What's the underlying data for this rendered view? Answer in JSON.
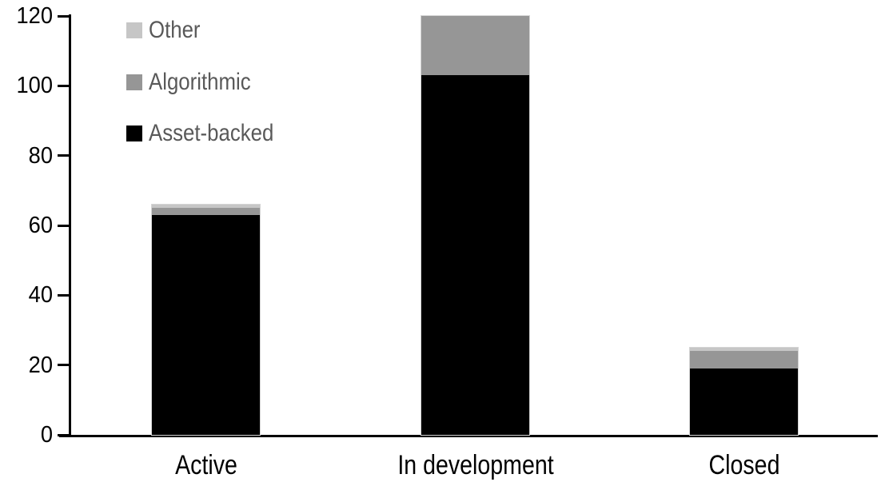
{
  "chart_data": {
    "type": "bar",
    "stacked": true,
    "title": "",
    "xlabel": "",
    "ylabel": "",
    "categories": [
      "Active",
      "In development",
      "Closed"
    ],
    "series": [
      {
        "name": "Asset-backed",
        "color": "#000000",
        "values": [
          63,
          103,
          19
        ]
      },
      {
        "name": "Algorithmic",
        "color": "#969696",
        "values": [
          2,
          17,
          5
        ]
      },
      {
        "name": "Other",
        "color": "#c6c6c6",
        "values": [
          1,
          0,
          1
        ]
      }
    ],
    "totals": [
      66,
      120,
      25
    ],
    "ylim": [
      0,
      120
    ],
    "yticks": [
      0,
      20,
      40,
      60,
      80,
      100,
      120
    ],
    "grid": false,
    "legend": {
      "position": "top-left",
      "order": [
        "Other",
        "Algorithmic",
        "Asset-backed"
      ],
      "text_color": "#595959"
    },
    "axis_color": "#000000",
    "background_color": "#ffffff"
  }
}
